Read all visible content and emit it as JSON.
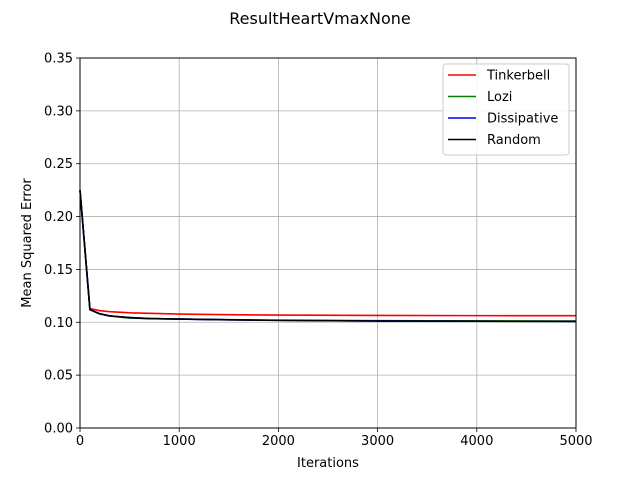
{
  "chart_data": {
    "type": "line",
    "title": "ResultHeartVmaxNone",
    "xlabel": "Iterations",
    "ylabel": "Mean Squared Error",
    "xlim": [
      0,
      5000
    ],
    "ylim": [
      0,
      0.35
    ],
    "x_ticks": [
      0,
      1000,
      2000,
      3000,
      4000,
      5000
    ],
    "x_tick_labels": [
      "0",
      "1000",
      "2000",
      "3000",
      "4000",
      "5000"
    ],
    "y_ticks": [
      0,
      0.05,
      0.1,
      0.15,
      0.2,
      0.25,
      0.3,
      0.35
    ],
    "y_tick_labels": [
      "0.00",
      "0.05",
      "0.10",
      "0.15",
      "0.20",
      "0.25",
      "0.30",
      "0.35"
    ],
    "grid": true,
    "legend_position": "top-right",
    "x": [
      0,
      100,
      200,
      300,
      500,
      700,
      1000,
      1500,
      2000,
      3000,
      4000,
      5000
    ],
    "series": [
      {
        "name": "Tinkerbell",
        "color": "#ff0000",
        "values": [
          0.225,
          0.113,
          0.111,
          0.11,
          0.109,
          0.1085,
          0.1078,
          0.1072,
          0.1068,
          0.1065,
          0.1063,
          0.1062
        ]
      },
      {
        "name": "Lozi",
        "color": "#008000",
        "values": [
          0.225,
          0.112,
          0.108,
          0.106,
          0.104,
          0.1035,
          0.103,
          0.1025,
          0.102,
          0.1015,
          0.1013,
          0.1012
        ]
      },
      {
        "name": "Dissipative",
        "color": "#0000ff",
        "values": [
          0.225,
          0.112,
          0.108,
          0.106,
          0.1045,
          0.1035,
          0.103,
          0.1023,
          0.1018,
          0.1013,
          0.101,
          0.1009
        ]
      },
      {
        "name": "Random",
        "color": "#000000",
        "values": [
          0.225,
          0.112,
          0.108,
          0.106,
          0.1045,
          0.1035,
          0.103,
          0.1023,
          0.1018,
          0.1012,
          0.101,
          0.1008
        ]
      }
    ]
  }
}
